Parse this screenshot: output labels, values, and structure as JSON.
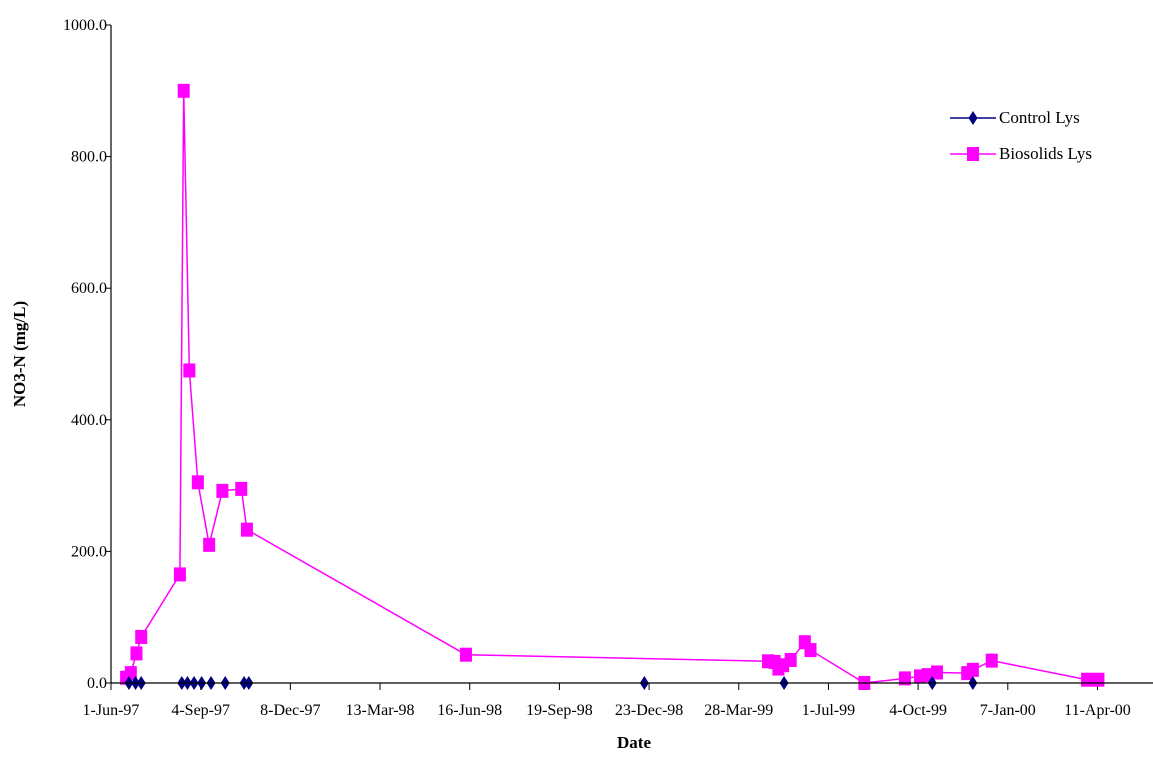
{
  "chart_data": {
    "type": "line",
    "title": "",
    "xlabel": "Date",
    "ylabel": "NO3-N (mg/L)",
    "ylim": [
      0,
      1000
    ],
    "y_ticks": [
      "0.0",
      "200.0",
      "400.0",
      "600.0",
      "800.0",
      "1000.0"
    ],
    "x_tick_labels": [
      "1-Jun-97",
      "4-Sep-97",
      "8-Dec-97",
      "13-Mar-98",
      "16-Jun-98",
      "19-Sep-98",
      "23-Dec-98",
      "28-Mar-99",
      "1-Jul-99",
      "4-Oct-99",
      "7-Jan-00",
      "11-Apr-00"
    ],
    "grid": false,
    "legend_position": "top-right",
    "series": [
      {
        "name": "Control Lys",
        "color": "#000080",
        "marker": "diamond",
        "line": false,
        "points": [
          [
            "1997-06-20",
            0
          ],
          [
            "1997-06-27",
            0
          ],
          [
            "1997-07-03",
            0
          ],
          [
            "1997-08-15",
            0
          ],
          [
            "1997-08-21",
            0
          ],
          [
            "1997-08-28",
            0
          ],
          [
            "1997-09-05",
            0
          ],
          [
            "1997-09-15",
            0
          ],
          [
            "1997-09-30",
            0
          ],
          [
            "1997-10-20",
            0
          ],
          [
            "1997-10-25",
            0
          ],
          [
            "1998-12-18",
            0
          ],
          [
            "1999-05-15",
            0
          ],
          [
            "1999-10-19",
            0
          ],
          [
            "1999-12-01",
            0
          ]
        ]
      },
      {
        "name": "Biosolids Lys",
        "color": "#FF00FF",
        "marker": "square",
        "line": true,
        "points": [
          [
            "1997-06-17",
            8
          ],
          [
            "1997-06-22",
            15
          ],
          [
            "1997-06-28",
            45
          ],
          [
            "1997-07-03",
            70
          ],
          [
            "1997-08-13",
            165
          ],
          [
            "1997-08-17",
            900
          ],
          [
            "1997-08-23",
            475
          ],
          [
            "1997-09-01",
            305
          ],
          [
            "1997-09-13",
            210
          ],
          [
            "1997-09-27",
            292
          ],
          [
            "1997-10-17",
            295
          ],
          [
            "1997-10-23",
            233
          ],
          [
            "1998-06-12",
            43
          ],
          [
            "1999-04-28",
            33
          ],
          [
            "1999-05-05",
            32
          ],
          [
            "1999-05-09",
            22
          ],
          [
            "1999-05-14",
            27
          ],
          [
            "1999-05-22",
            35
          ],
          [
            "1999-06-06",
            62
          ],
          [
            "1999-06-12",
            50
          ],
          [
            "1999-08-08",
            0
          ],
          [
            "1999-09-20",
            7
          ],
          [
            "1999-10-06",
            10
          ],
          [
            "1999-10-14",
            12
          ],
          [
            "1999-10-24",
            16
          ],
          [
            "1999-11-25",
            15
          ],
          [
            "1999-12-01",
            20
          ],
          [
            "1999-12-21",
            34
          ],
          [
            "2000-03-31",
            5
          ],
          [
            "2000-04-12",
            5
          ]
        ]
      }
    ]
  }
}
